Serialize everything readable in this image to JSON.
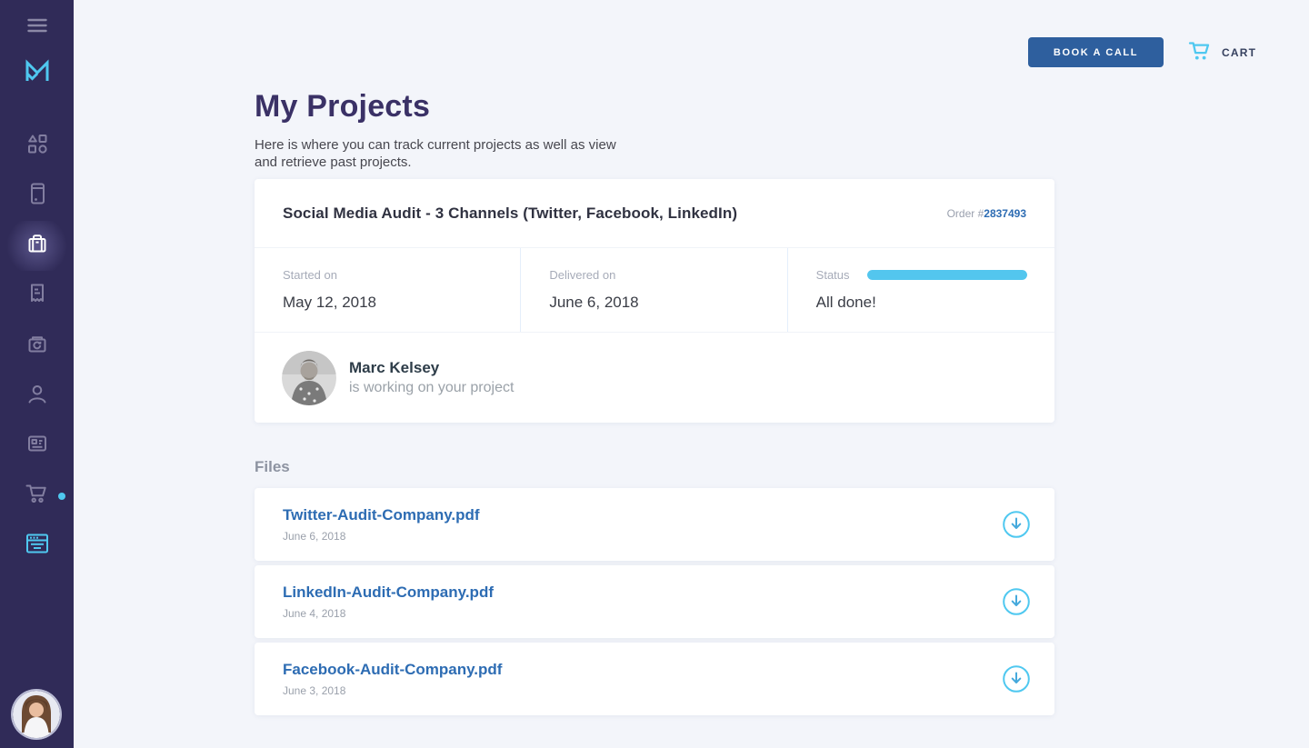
{
  "colors": {
    "sidebar_bg": "#302b58",
    "accent_cyan": "#4fc8f0",
    "button_blue": "#2e5f9e",
    "link_blue": "#2d6cb3",
    "heading_navy": "#3a3166",
    "page_bg": "#f3f5fa",
    "progress_cyan": "#53c6ee"
  },
  "sidebar": {
    "icons": [
      {
        "name": "hamburger-menu-icon"
      },
      {
        "name": "logo-m-icon"
      },
      {
        "name": "shapes-icon",
        "active": false
      },
      {
        "name": "mobile-icon",
        "active": false
      },
      {
        "name": "briefcase-icon",
        "active": true
      },
      {
        "name": "receipt-icon",
        "active": false
      },
      {
        "name": "archive-history-icon",
        "active": false
      },
      {
        "name": "person-icon",
        "active": false
      },
      {
        "name": "id-card-icon",
        "active": false
      },
      {
        "name": "cart-icon",
        "active": false,
        "badge_dot": true
      },
      {
        "name": "browser-list-icon",
        "active": true
      }
    ],
    "avatar": "user-profile-photo"
  },
  "topbar": {
    "book_call_label": "BOOK A CALL",
    "cart_label": "CART"
  },
  "page": {
    "title": "My Projects",
    "subtitle": "Here is where you can track current projects as well as view and retrieve past projects."
  },
  "project": {
    "title": "Social Media Audit - 3 Channels (Twitter, Facebook, LinkedIn)",
    "order_label": "Order #",
    "order_number": "2837493",
    "started_label": "Started on",
    "started_value": "May 12, 2018",
    "delivered_label": "Delivered on",
    "delivered_value": "June 6, 2018",
    "status_label": "Status",
    "status_value": "All done!",
    "progress_percent": 100,
    "member_name": "Marc Kelsey",
    "member_subtitle": "is working on your project"
  },
  "files": {
    "heading": "Files",
    "items": [
      {
        "name": "Twitter-Audit-Company.pdf",
        "date": "June 6, 2018"
      },
      {
        "name": "LinkedIn-Audit-Company.pdf",
        "date": "June 4, 2018"
      },
      {
        "name": "Facebook-Audit-Company.pdf",
        "date": "June 3, 2018"
      }
    ]
  }
}
